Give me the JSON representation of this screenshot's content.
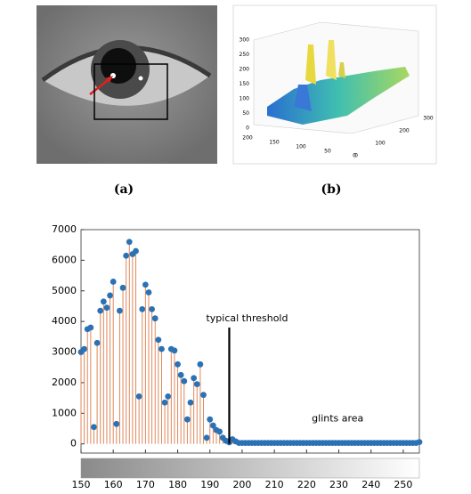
{
  "figure_a": {
    "label": "(a)"
  },
  "figure_b": {
    "label": "(b)",
    "z_ticks": [
      300,
      250,
      200,
      150,
      100,
      50,
      0
    ],
    "y_ticks": [
      200,
      150,
      100,
      50,
      0
    ],
    "x_ticks": [
      0,
      100,
      200,
      300
    ]
  },
  "chart_data": {
    "type": "stem",
    "x": [
      150,
      151,
      152,
      153,
      154,
      155,
      156,
      157,
      158,
      159,
      160,
      161,
      162,
      163,
      164,
      165,
      166,
      167,
      168,
      169,
      170,
      171,
      172,
      173,
      174,
      175,
      176,
      177,
      178,
      179,
      180,
      181,
      182,
      183,
      184,
      185,
      186,
      187,
      188,
      189,
      190,
      191,
      192,
      193,
      194,
      195,
      196,
      197,
      198,
      199,
      200,
      201,
      202,
      203,
      204,
      205,
      206,
      207,
      208,
      209,
      210,
      211,
      212,
      213,
      214,
      215,
      216,
      217,
      218,
      219,
      220,
      221,
      222,
      223,
      224,
      225,
      226,
      227,
      228,
      229,
      230,
      231,
      232,
      233,
      234,
      235,
      236,
      237,
      238,
      239,
      240,
      241,
      242,
      243,
      244,
      245,
      246,
      247,
      248,
      249,
      250,
      251,
      252,
      253,
      254,
      255
    ],
    "values": [
      3000,
      3100,
      3750,
      3800,
      550,
      3300,
      4350,
      4650,
      4450,
      4850,
      5300,
      650,
      4350,
      5100,
      6150,
      6600,
      6200,
      6300,
      1550,
      4400,
      5200,
      4950,
      4400,
      4100,
      3400,
      3100,
      1350,
      1550,
      3100,
      3050,
      2600,
      2250,
      2050,
      800,
      1350,
      2150,
      1950,
      2600,
      1600,
      200,
      800,
      600,
      450,
      400,
      200,
      100,
      50,
      150,
      80,
      30,
      30,
      30,
      30,
      30,
      30,
      30,
      30,
      30,
      30,
      30,
      30,
      30,
      30,
      30,
      30,
      30,
      30,
      30,
      30,
      30,
      30,
      30,
      30,
      30,
      30,
      30,
      30,
      30,
      30,
      30,
      30,
      30,
      30,
      30,
      30,
      30,
      30,
      30,
      30,
      30,
      30,
      30,
      30,
      30,
      30,
      30,
      30,
      30,
      30,
      30,
      30,
      30,
      30,
      30,
      30,
      60
    ],
    "xlim": [
      150,
      255
    ],
    "ylim": [
      -300,
      7000
    ],
    "xticks": [
      150,
      160,
      170,
      180,
      190,
      200,
      210,
      220,
      230,
      240,
      250
    ],
    "yticks": [
      0,
      1000,
      2000,
      3000,
      4000,
      5000,
      6000,
      7000
    ],
    "stem_color": "#e0875a",
    "marker_color": "#2a72b5",
    "threshold": {
      "x": 196,
      "top": 3800,
      "label": "typical threshold"
    },
    "annotation": "glints area"
  }
}
